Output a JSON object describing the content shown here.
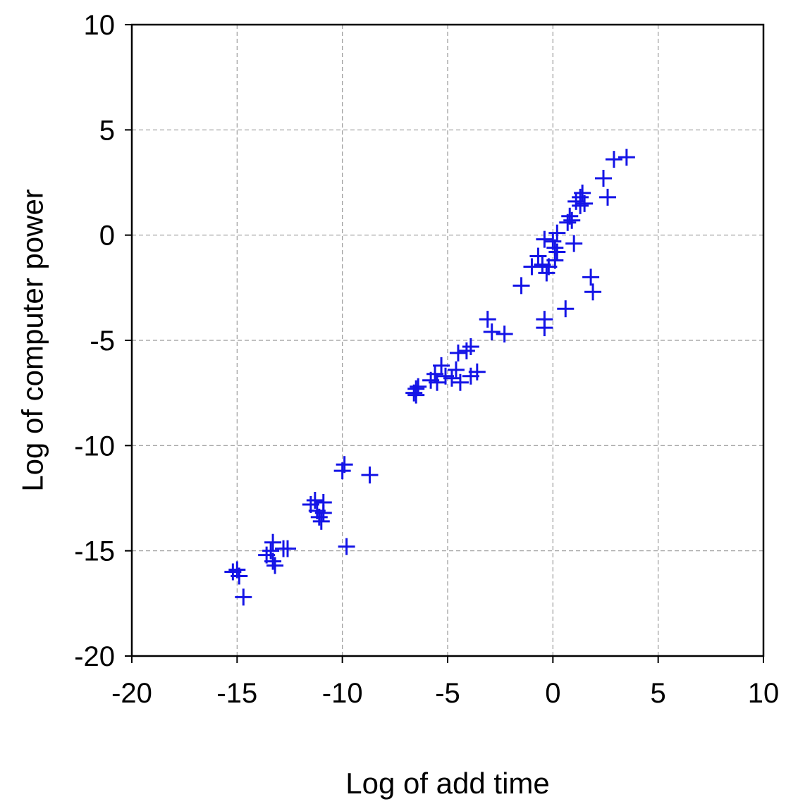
{
  "chart_data": {
    "type": "scatter",
    "title": "",
    "xlabel": "Log of add time",
    "ylabel": "Log of computer power",
    "xlim": [
      -20,
      10
    ],
    "ylim": [
      -20,
      10
    ],
    "xticks": [
      -20,
      -15,
      -10,
      -5,
      0,
      5,
      10
    ],
    "yticks": [
      -20,
      -15,
      -10,
      -5,
      0,
      5,
      10
    ],
    "x_tick_labels": [
      "-20",
      "-15",
      "-10",
      "-5",
      "0",
      "5",
      "10"
    ],
    "y_tick_labels": [
      "-20",
      "-15",
      "-10",
      "-5",
      "0",
      "5",
      "10"
    ],
    "grid": true,
    "marker": "plus",
    "marker_color": "#1414e6",
    "points": [
      [
        -15.2,
        -16.0
      ],
      [
        -15.0,
        -15.9
      ],
      [
        -14.9,
        -16.2
      ],
      [
        -14.7,
        -17.2
      ],
      [
        -13.6,
        -15.2
      ],
      [
        -13.4,
        -15.0
      ],
      [
        -13.3,
        -15.5
      ],
      [
        -13.3,
        -14.6
      ],
      [
        -13.2,
        -15.7
      ],
      [
        -12.8,
        -14.9
      ],
      [
        -12.6,
        -14.9
      ],
      [
        -11.5,
        -12.8
      ],
      [
        -11.3,
        -12.6
      ],
      [
        -11.2,
        -13.1
      ],
      [
        -11.1,
        -13.4
      ],
      [
        -11.0,
        -13.6
      ],
      [
        -10.9,
        -12.7
      ],
      [
        -10.9,
        -13.2
      ],
      [
        -10.0,
        -11.2
      ],
      [
        -9.9,
        -10.9
      ],
      [
        -9.8,
        -14.8
      ],
      [
        -8.7,
        -11.4
      ],
      [
        -6.6,
        -7.5
      ],
      [
        -6.5,
        -7.3
      ],
      [
        -6.4,
        -7.2
      ],
      [
        -6.5,
        -7.6
      ],
      [
        -5.8,
        -6.9
      ],
      [
        -5.6,
        -6.6
      ],
      [
        -5.5,
        -7.0
      ],
      [
        -5.3,
        -6.2
      ],
      [
        -5.1,
        -6.7
      ],
      [
        -4.8,
        -6.8
      ],
      [
        -4.6,
        -6.4
      ],
      [
        -4.5,
        -5.6
      ],
      [
        -4.4,
        -7.0
      ],
      [
        -4.1,
        -5.5
      ],
      [
        -3.9,
        -5.3
      ],
      [
        -3.9,
        -6.7
      ],
      [
        -3.6,
        -6.5
      ],
      [
        -3.1,
        -4.0
      ],
      [
        -2.9,
        -4.6
      ],
      [
        -2.3,
        -4.7
      ],
      [
        -1.5,
        -2.4
      ],
      [
        -1.0,
        -1.5
      ],
      [
        -0.7,
        -1.0
      ],
      [
        -0.5,
        -1.4
      ],
      [
        -0.4,
        -0.2
      ],
      [
        -0.4,
        -4.4
      ],
      [
        -0.4,
        -4.0
      ],
      [
        -0.3,
        -1.8
      ],
      [
        -0.2,
        -1.5
      ],
      [
        0.0,
        -0.3
      ],
      [
        0.1,
        -0.6
      ],
      [
        0.1,
        -1.2
      ],
      [
        0.2,
        -0.8
      ],
      [
        0.2,
        0.1
      ],
      [
        0.6,
        -3.5
      ],
      [
        0.7,
        0.6
      ],
      [
        0.8,
        0.9
      ],
      [
        0.9,
        0.7
      ],
      [
        1.0,
        -0.4
      ],
      [
        1.1,
        1.6
      ],
      [
        1.3,
        1.8
      ],
      [
        1.3,
        1.4
      ],
      [
        1.4,
        2.0
      ],
      [
        1.5,
        1.5
      ],
      [
        1.8,
        -2.0
      ],
      [
        1.9,
        -2.7
      ],
      [
        2.4,
        2.7
      ],
      [
        2.6,
        1.8
      ],
      [
        2.9,
        3.6
      ],
      [
        3.5,
        3.7
      ]
    ]
  }
}
